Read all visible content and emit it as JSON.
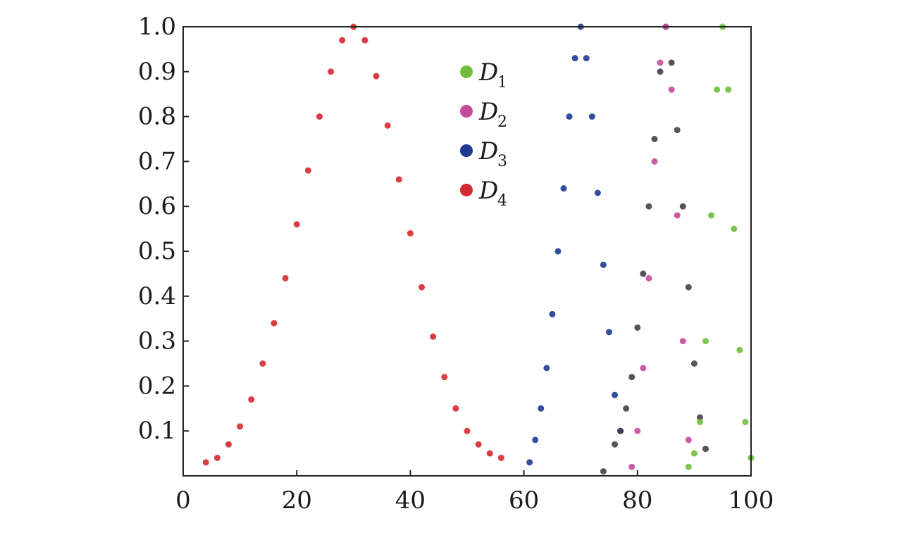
{
  "chart_data": {
    "type": "scatter",
    "title": "",
    "xlabel": "",
    "ylabel": "",
    "xlim": [
      0,
      100
    ],
    "ylim": [
      0,
      1.0
    ],
    "grid": false,
    "legend_position": "top-center",
    "x_ticks": [
      {
        "value": 0,
        "label": "0"
      },
      {
        "value": 20,
        "label": "20"
      },
      {
        "value": 40,
        "label": "40"
      },
      {
        "value": 60,
        "label": "60"
      },
      {
        "value": 80,
        "label": "80"
      },
      {
        "value": 100,
        "label": "100"
      }
    ],
    "y_ticks": [
      {
        "value": 0.1,
        "label": "0.1"
      },
      {
        "value": 0.2,
        "label": "0.2"
      },
      {
        "value": 0.3,
        "label": "0.3"
      },
      {
        "value": 0.4,
        "label": "0.4"
      },
      {
        "value": 0.5,
        "label": "0.5"
      },
      {
        "value": 0.6,
        "label": "0.6"
      },
      {
        "value": 0.7,
        "label": "0.7"
      },
      {
        "value": 0.8,
        "label": "0.8"
      },
      {
        "value": 0.9,
        "label": "0.9"
      },
      {
        "value": 1.0,
        "label": "1.0"
      }
    ],
    "legend": [
      {
        "symbol": "D",
        "subscript": "1",
        "color": "#6fbf3a"
      },
      {
        "symbol": "D",
        "subscript": "2",
        "color": "#c64a9c"
      },
      {
        "symbol": "D",
        "subscript": "3",
        "color": "#1f3a93"
      },
      {
        "symbol": "D",
        "subscript": "4",
        "color": "#d7282f"
      }
    ],
    "series": [
      {
        "color": "#d7282f",
        "x": [
          4,
          6,
          8,
          10,
          12,
          14,
          16,
          18,
          20,
          22,
          24,
          26,
          28,
          30,
          32,
          34,
          36,
          38,
          40,
          42,
          44,
          46,
          48,
          50,
          52,
          54,
          56
        ],
        "y": [
          0.03,
          0.04,
          0.07,
          0.11,
          0.17,
          0.25,
          0.34,
          0.44,
          0.56,
          0.68,
          0.8,
          0.9,
          0.97,
          1.0,
          0.97,
          0.89,
          0.78,
          0.66,
          0.54,
          0.42,
          0.31,
          0.22,
          0.15,
          0.1,
          0.07,
          0.05,
          0.04
        ]
      },
      {
        "color": "#1f3a93",
        "x": [
          61,
          62,
          63,
          64,
          65,
          66,
          67,
          68,
          69,
          70,
          71,
          72,
          73,
          74,
          75,
          76,
          77
        ],
        "y": [
          0.03,
          0.08,
          0.15,
          0.24,
          0.36,
          0.5,
          0.64,
          0.8,
          0.93,
          1.0,
          0.93,
          0.8,
          0.63,
          0.47,
          0.32,
          0.18,
          0.1
        ]
      },
      {
        "color": "#4a3d4a",
        "x": [
          74,
          76,
          77,
          78,
          79,
          80,
          81,
          82,
          83,
          84,
          85,
          86,
          87,
          88,
          89,
          90,
          91,
          92
        ],
        "y": [
          0.01,
          0.07,
          0.1,
          0.15,
          0.22,
          0.33,
          0.45,
          0.6,
          0.75,
          0.9,
          1.0,
          0.92,
          0.77,
          0.6,
          0.42,
          0.25,
          0.13,
          0.06
        ]
      },
      {
        "color": "#c64a9c",
        "x": [
          79,
          80,
          81,
          82,
          83,
          84,
          85,
          86,
          87,
          88,
          89
        ],
        "y": [
          0.02,
          0.1,
          0.24,
          0.44,
          0.7,
          0.92,
          1.0,
          0.86,
          0.58,
          0.3,
          0.08
        ]
      },
      {
        "color": "#6fbf3a",
        "x": [
          89,
          90,
          91,
          92,
          93,
          94,
          95,
          96,
          97,
          98,
          99,
          100
        ],
        "y": [
          0.02,
          0.05,
          0.12,
          0.3,
          0.58,
          0.86,
          1.0,
          0.86,
          0.55,
          0.28,
          0.12,
          0.04
        ]
      }
    ]
  }
}
